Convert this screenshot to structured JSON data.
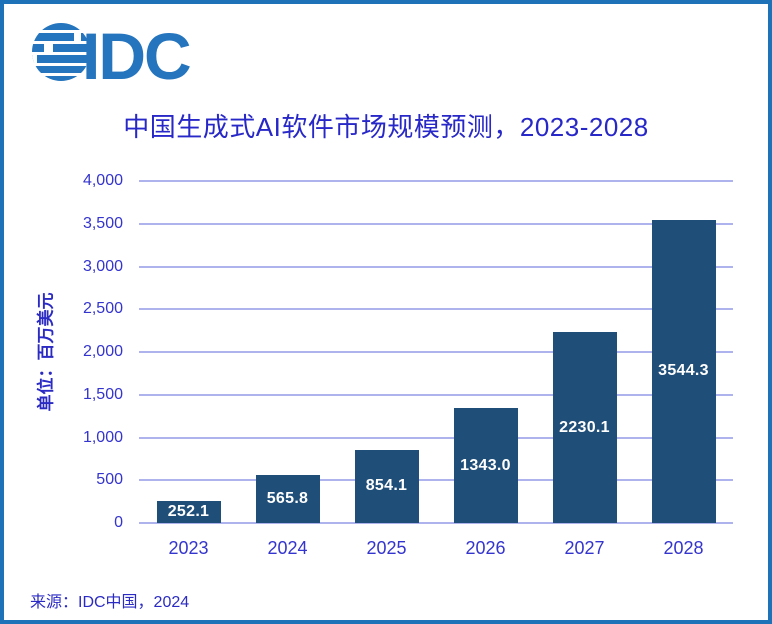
{
  "logo": {
    "text": "IDC",
    "color": "#2474BE"
  },
  "title": {
    "text": "中国生成式AI软件市场规模预测，2023-2028",
    "color": "#2828C8"
  },
  "chart_data": {
    "type": "bar",
    "title": "中国生成式AI软件市场规模预测，2023-2028",
    "categories": [
      "2023",
      "2024",
      "2025",
      "2026",
      "2027",
      "2028"
    ],
    "values": [
      252.1,
      565.8,
      854.1,
      1343.0,
      2230.1,
      3544.3
    ],
    "value_labels": [
      "252.1",
      "565.8",
      "854.1",
      "1343.0",
      "2230.1",
      "3544.3"
    ],
    "xlabel": "",
    "ylabel": "单位：百万美元",
    "ylim": [
      0,
      4000
    ],
    "ytick_step": 500,
    "ytick_labels": [
      "0",
      "500",
      "1,000",
      "1,500",
      "2,000",
      "2,500",
      "3,000",
      "3,500",
      "4,000"
    ],
    "grid": true,
    "legend": "none",
    "bar_color": "#1F4E79",
    "gridline_color": "#AEB3EE",
    "axis_label_color": "#3434CE",
    "data_label_color": "#FFFFFF",
    "source": "来源：IDC中国，2024"
  },
  "colors": {
    "frame_border": "#1E73B8",
    "background": "#FFFFFF",
    "title_text": "#2828C8",
    "unit_and_source_text": "#2B2BC4",
    "logo_blue": "#2474BE"
  }
}
